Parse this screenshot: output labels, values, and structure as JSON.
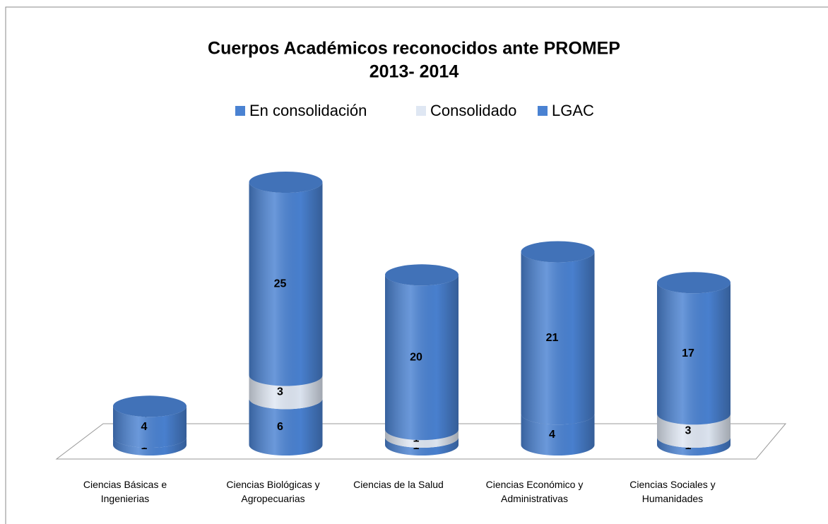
{
  "chart_data": {
    "type": "bar3d-cylinder-stacked",
    "title": "Cuerpos Académicos reconocidos ante PROMEP",
    "subtitle": "2013- 2014",
    "categories": [
      "Ciencias Básicas e Ingenierias",
      "Ciencias Biológicas y Agropecuarias",
      "Ciencias de la Salud",
      "Ciencias Económico y Administrativas",
      "Ciencias Sociales y Humanidades"
    ],
    "series": [
      {
        "name": "En consolidación",
        "color": "#4a82d2",
        "values": [
          1,
          6,
          1,
          4,
          1
        ]
      },
      {
        "name": "Consolidado",
        "color": "#dfe7f3",
        "values": [
          0,
          3,
          1,
          0,
          3
        ]
      },
      {
        "name": "LGAC",
        "color": "#4a82d2",
        "values": [
          4,
          25,
          20,
          21,
          17
        ]
      }
    ],
    "legend": "top"
  }
}
